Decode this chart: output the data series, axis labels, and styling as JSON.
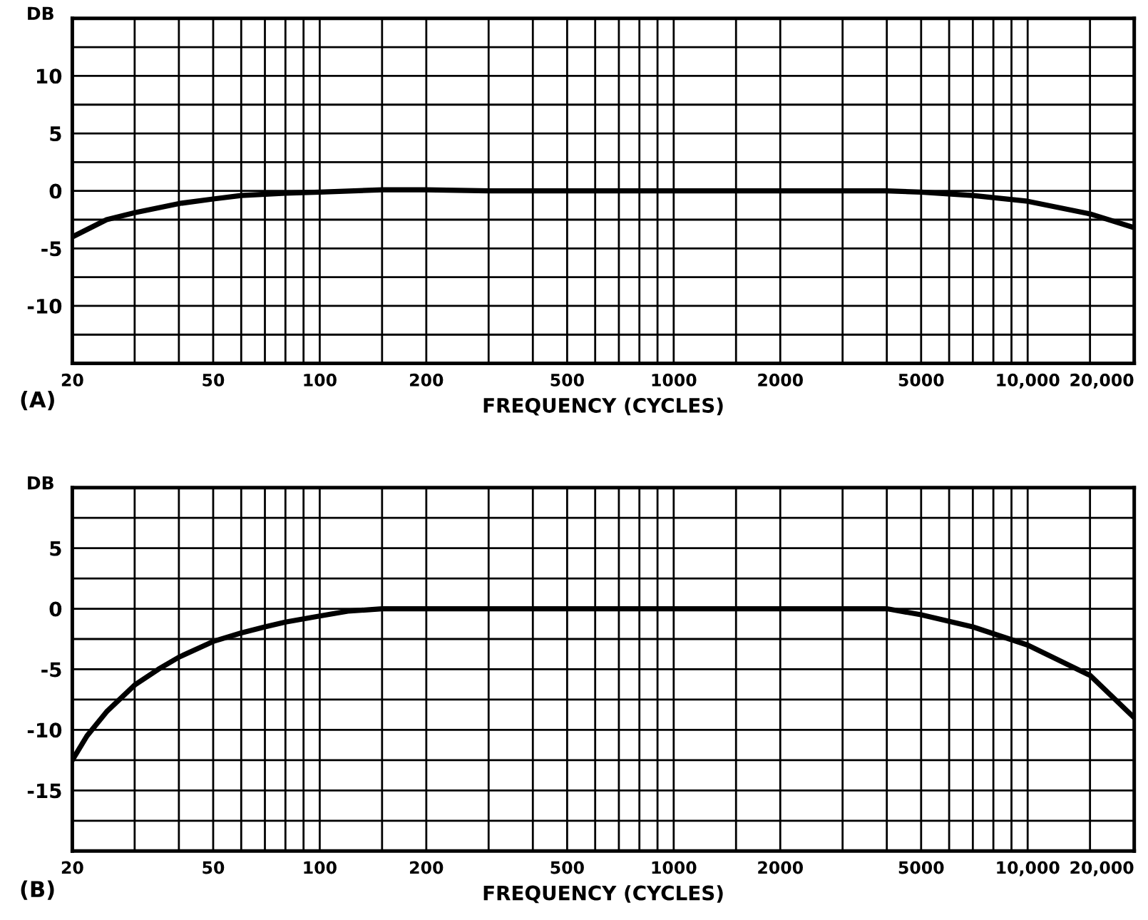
{
  "chart_data": [
    {
      "type": "line",
      "ylabel": "DB",
      "xlabel": "FREQUENCY (CYCLES)",
      "annotations": [
        "(A)"
      ],
      "log": "x",
      "grid": true,
      "legend": false,
      "marker": "none",
      "line_style": "solid",
      "xlim": [
        20,
        20000
      ],
      "ylim": [
        -15,
        15
      ],
      "xticks": [
        20,
        {
          "value": 30,
          "label": null
        },
        {
          "value": 40,
          "label": null
        },
        50,
        {
          "value": 60,
          "label": null
        },
        {
          "value": 70,
          "label": null
        },
        {
          "value": 80,
          "label": null
        },
        {
          "value": 90,
          "label": null
        },
        100,
        {
          "value": 150,
          "label": null
        },
        200,
        {
          "value": 300,
          "label": null
        },
        {
          "value": 400,
          "label": null
        },
        500,
        {
          "value": 600,
          "label": null
        },
        {
          "value": 700,
          "label": null
        },
        {
          "value": 800,
          "label": null
        },
        {
          "value": 900,
          "label": null
        },
        1000,
        {
          "value": 1500,
          "label": null
        },
        2000,
        {
          "value": 3000,
          "label": null
        },
        {
          "value": 4000,
          "label": null
        },
        5000,
        {
          "value": 6000,
          "label": null
        },
        {
          "value": 7000,
          "label": null
        },
        {
          "value": 8000,
          "label": null
        },
        {
          "value": 9000,
          "label": null
        },
        {
          "value": 10000,
          "label": "10,000"
        },
        {
          "value": 15000,
          "label": null
        },
        {
          "value": 20000,
          "label": "20,000"
        }
      ],
      "yticks": [
        {
          "value": -15,
          "label": null
        },
        {
          "value": -12.5,
          "label": null
        },
        -10,
        {
          "value": -7.5,
          "label": null
        },
        -5,
        {
          "value": -2.5,
          "label": null
        },
        0,
        {
          "value": 2.5,
          "label": null
        },
        5,
        {
          "value": 7.5,
          "label": null
        },
        10,
        {
          "value": 12.5,
          "label": null
        },
        {
          "value": 15,
          "label": null
        }
      ],
      "series": [
        {
          "color": "#000000",
          "x": [
            20,
            25,
            30,
            40,
            50,
            60,
            80,
            100,
            150,
            200,
            300,
            1000,
            4000,
            5000,
            7000,
            10000,
            15000,
            20000
          ],
          "values": [
            -4,
            -2.5,
            -1.9,
            -1.1,
            -0.7,
            -0.4,
            -0.2,
            -0.1,
            0.1,
            0.1,
            0,
            0,
            0,
            -0.1,
            -0.4,
            -0.9,
            -2,
            -3.2
          ]
        }
      ]
    },
    {
      "type": "line",
      "ylabel": "DB",
      "xlabel": "FREQUENCY (CYCLES)",
      "annotations": [
        "(B)"
      ],
      "log": "x",
      "grid": true,
      "legend": false,
      "marker": "none",
      "line_style": "solid",
      "xlim": [
        20,
        20000
      ],
      "ylim": [
        -20,
        10
      ],
      "xticks": [
        20,
        {
          "value": 30,
          "label": null
        },
        {
          "value": 40,
          "label": null
        },
        50,
        {
          "value": 60,
          "label": null
        },
        {
          "value": 70,
          "label": null
        },
        {
          "value": 80,
          "label": null
        },
        {
          "value": 90,
          "label": null
        },
        100,
        {
          "value": 150,
          "label": null
        },
        200,
        {
          "value": 300,
          "label": null
        },
        {
          "value": 400,
          "label": null
        },
        500,
        {
          "value": 600,
          "label": null
        },
        {
          "value": 700,
          "label": null
        },
        {
          "value": 800,
          "label": null
        },
        {
          "value": 900,
          "label": null
        },
        1000,
        {
          "value": 1500,
          "label": null
        },
        2000,
        {
          "value": 3000,
          "label": null
        },
        {
          "value": 4000,
          "label": null
        },
        5000,
        {
          "value": 6000,
          "label": null
        },
        {
          "value": 7000,
          "label": null
        },
        {
          "value": 8000,
          "label": null
        },
        {
          "value": 9000,
          "label": null
        },
        {
          "value": 10000,
          "label": "10,000"
        },
        {
          "value": 15000,
          "label": null
        },
        {
          "value": 20000,
          "label": "20,000"
        }
      ],
      "yticks": [
        {
          "value": -20,
          "label": null
        },
        {
          "value": -17.5,
          "label": null
        },
        -15,
        {
          "value": -12.5,
          "label": null
        },
        -10,
        {
          "value": -7.5,
          "label": null
        },
        -5,
        {
          "value": -2.5,
          "label": null
        },
        0,
        {
          "value": 2.5,
          "label": null
        },
        5,
        {
          "value": 7.5,
          "label": null
        },
        {
          "value": 10,
          "label": null
        }
      ],
      "series": [
        {
          "color": "#000000",
          "x": [
            20,
            22,
            25,
            30,
            35,
            40,
            50,
            60,
            70,
            80,
            100,
            120,
            150,
            1000,
            4000,
            5000,
            7000,
            10000,
            15000,
            20000
          ],
          "values": [
            -12.5,
            -10.5,
            -8.5,
            -6.3,
            -5,
            -4,
            -2.7,
            -2,
            -1.5,
            -1.1,
            -0.6,
            -0.2,
            0,
            0,
            0,
            -0.5,
            -1.5,
            -3,
            -5.5,
            -9
          ]
        }
      ]
    }
  ]
}
